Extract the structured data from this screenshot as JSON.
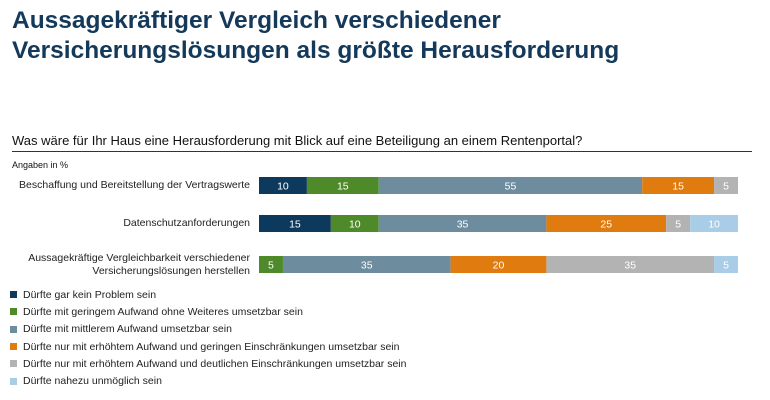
{
  "title": "Aussagekräftiger Vergleich verschiedener Versicherungslösungen als größte Herausforderung",
  "question": "Was wäre für Ihr Haus eine Herausforderung mit Blick auf eine Beteiligung an einem Rentenportal?",
  "unit_note": "Angaben in %",
  "colors": [
    "#0d3a5c",
    "#4e8a2a",
    "#6d8c9e",
    "#e07b10",
    "#b3b3b3",
    "#a9cde6"
  ],
  "chart_data": {
    "type": "bar",
    "orientation": "horizontal",
    "stacked": true,
    "categories": [
      "Beschaffung und Bereitstellung der Vertragswerte",
      "Datenschutzanforderungen",
      "Aussagekräftige Vergleichbarkeit verschiedener Versicherungslösungen herstellen"
    ],
    "category_lines": [
      [
        "Beschaffung und Bereitstellung der Vertragswerte"
      ],
      [
        "Datenschutzanforderungen"
      ],
      [
        "Aussagekräftige Vergleichbarkeit verschiedener",
        "Versicherungslösungen herstellen"
      ]
    ],
    "series": [
      {
        "name": "Dürfte gar kein Problem sein",
        "values": [
          10,
          15,
          0
        ]
      },
      {
        "name": "Dürfte mit geringem Aufwand ohne Weiteres umsetzbar sein",
        "values": [
          15,
          10,
          5
        ]
      },
      {
        "name": "Dürfte mit mittlerem Aufwand umsetzbar sein",
        "values": [
          55,
          35,
          35
        ]
      },
      {
        "name": "Dürfte nur mit erhöhtem Aufwand und geringen Einschränkungen umsetzbar sein",
        "values": [
          15,
          25,
          20
        ]
      },
      {
        "name": "Dürfte nur mit erhöhtem Aufwand und deutlichen Einschränkungen umsetzbar sein",
        "values": [
          5,
          5,
          35
        ]
      },
      {
        "name": "Dürfte nahezu unmöglich sein",
        "values": [
          0,
          10,
          5
        ]
      }
    ],
    "xlim": [
      0,
      100
    ],
    "legend": "bottom-left",
    "grid": false
  }
}
